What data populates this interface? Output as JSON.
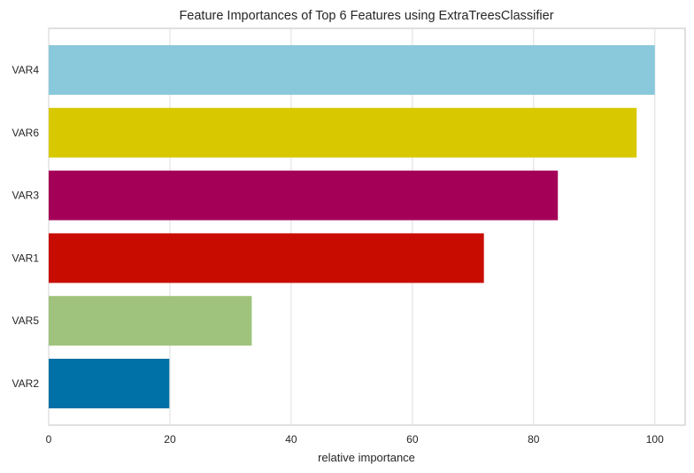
{
  "chart_data": {
    "type": "bar",
    "orientation": "horizontal",
    "title": "Feature Importances of Top 6 Features using ExtraTreesClassifier",
    "xlabel": "relative importance",
    "ylabel": "",
    "categories": [
      "VAR4",
      "VAR6",
      "VAR3",
      "VAR1",
      "VAR5",
      "VAR2"
    ],
    "values": [
      100,
      97,
      84,
      71.8,
      33.5,
      19.9
    ],
    "colors": [
      "#8ac9db",
      "#d8c800",
      "#a50058",
      "#c80d00",
      "#9fc37c",
      "#0071a6"
    ],
    "xlim": [
      0,
      105
    ],
    "xticks": [
      0,
      20,
      40,
      60,
      80,
      100
    ],
    "xtick_labels": [
      "0",
      "20",
      "40",
      "60",
      "80",
      "100"
    ],
    "grid": true
  }
}
